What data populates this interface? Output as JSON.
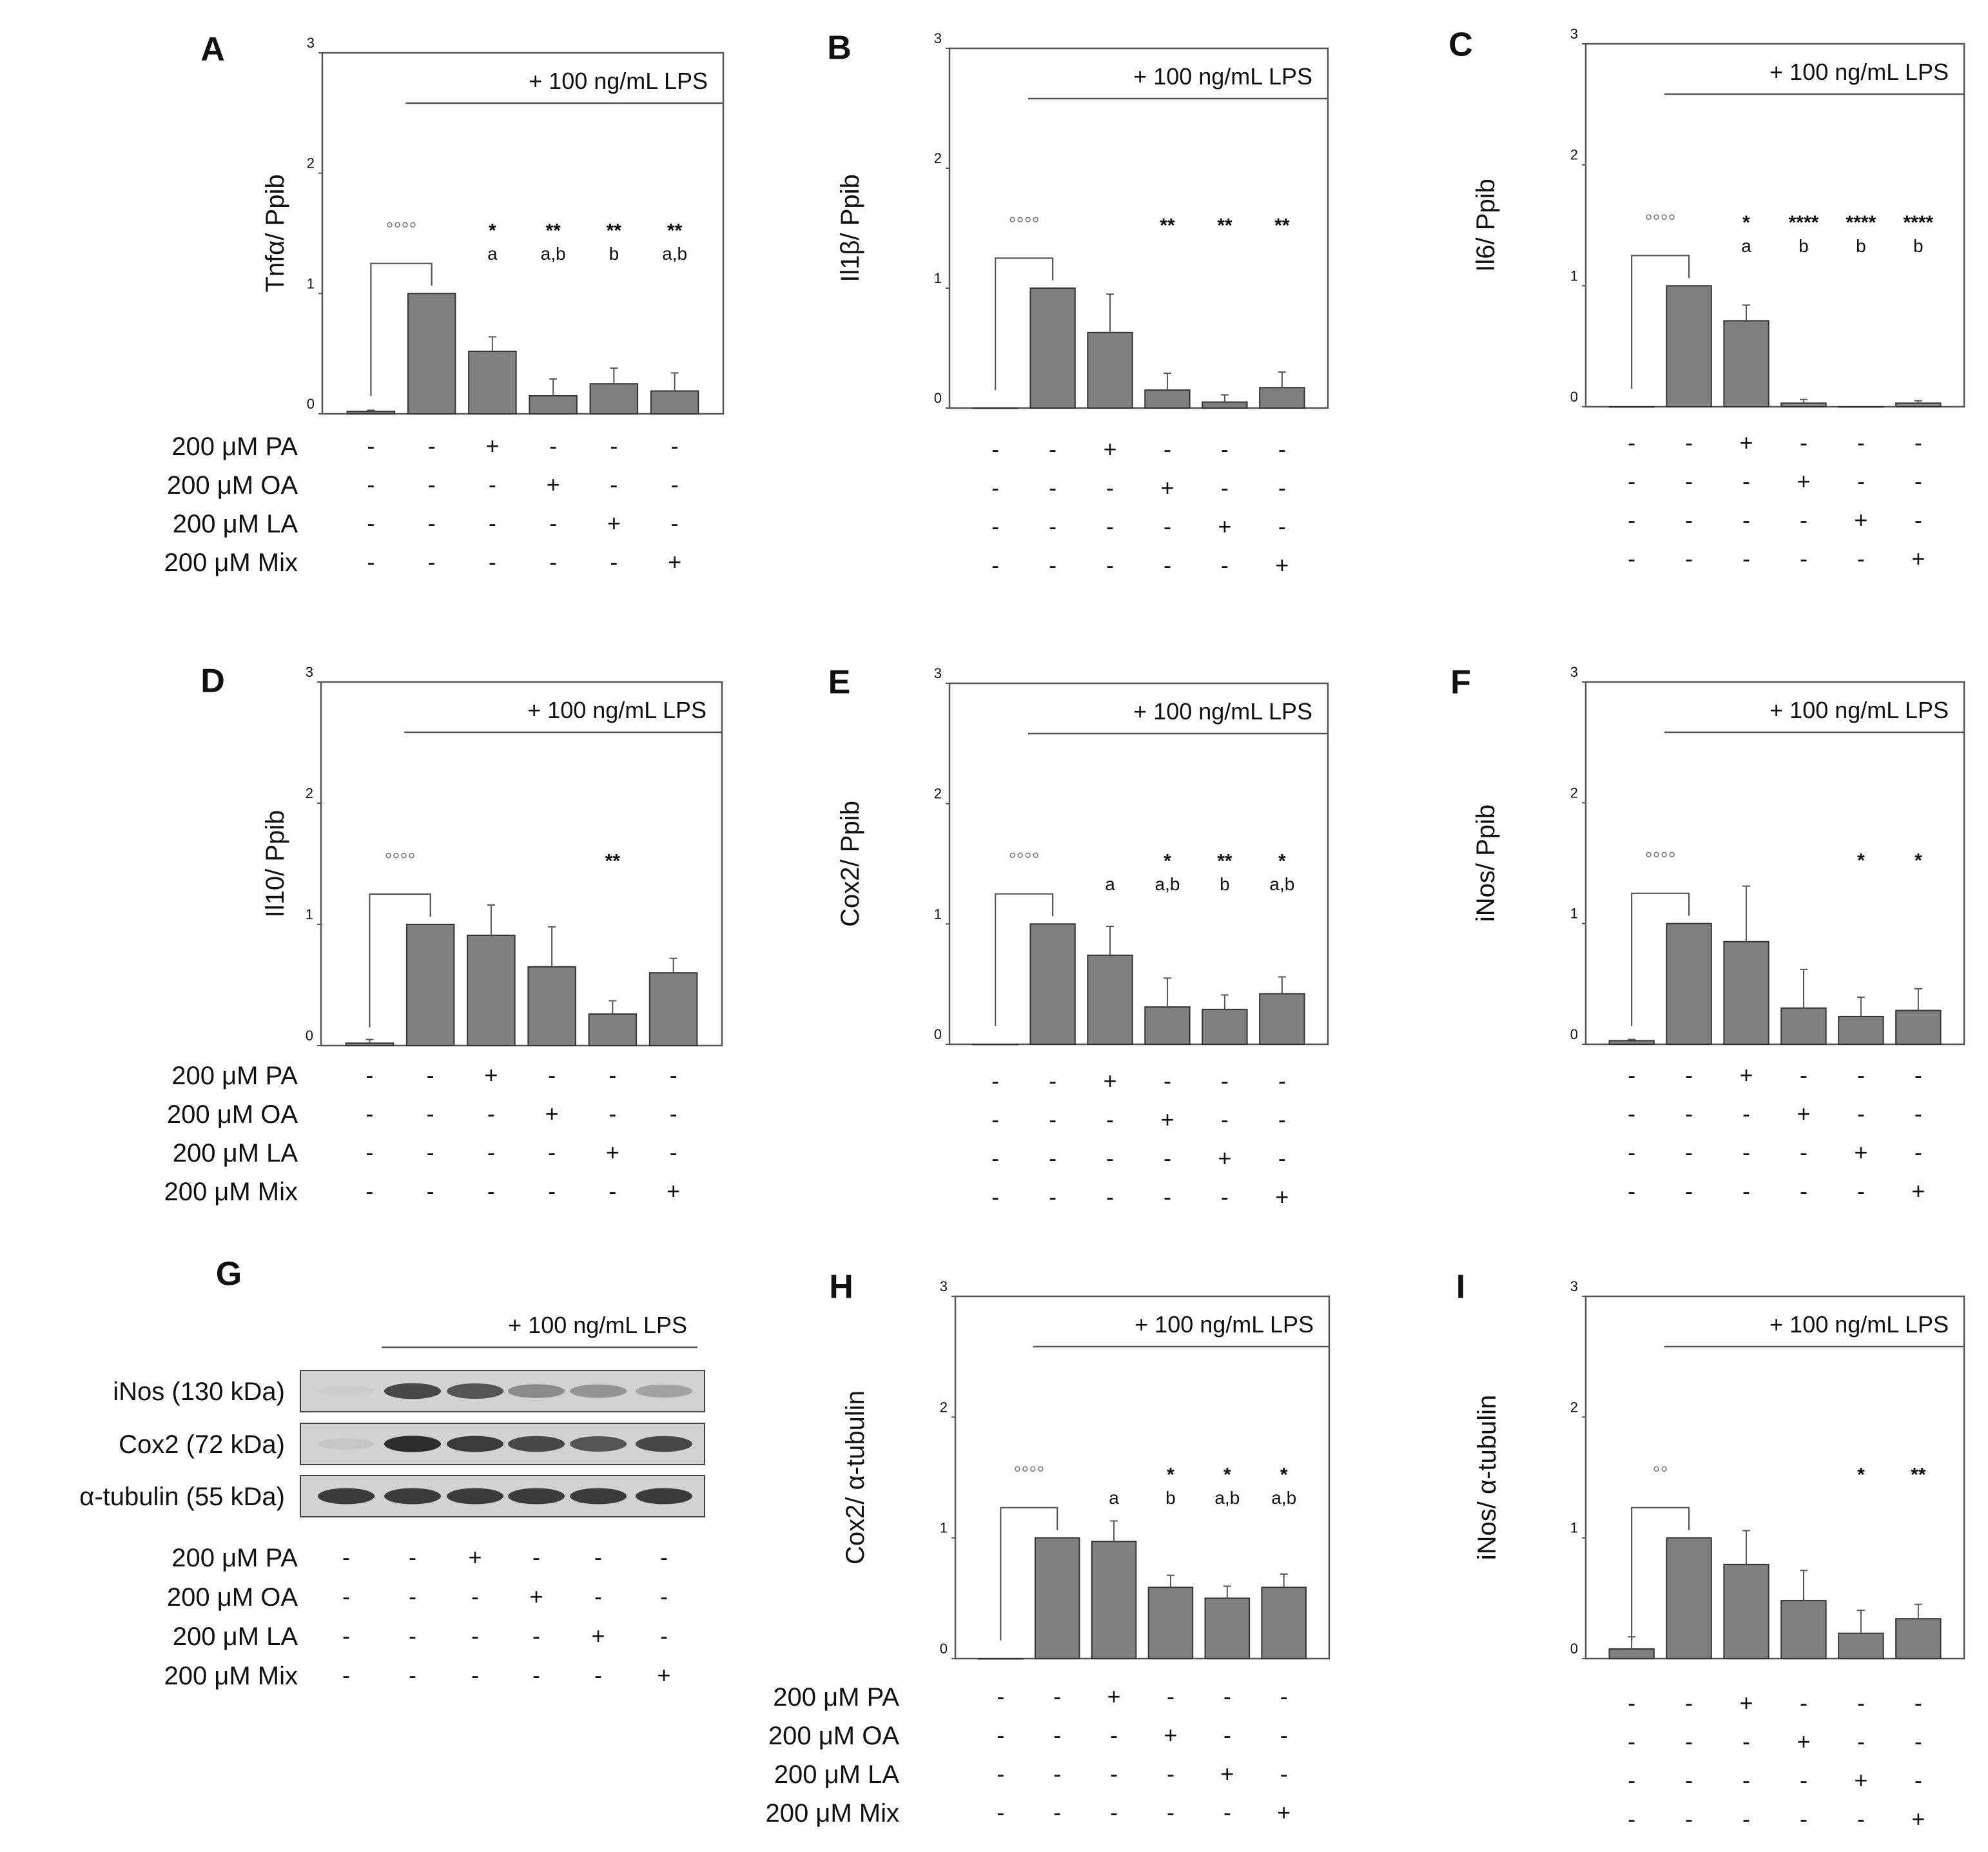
{
  "figure": {
    "lps_label": "+ 100 ng/mL  LPS",
    "treatment_labels": [
      "200 μM PA",
      "200 μM OA",
      "200 μM LA",
      "200 μM Mix"
    ],
    "treatment_matrix": [
      [
        "-",
        "-",
        "+",
        "-",
        "-",
        "-"
      ],
      [
        "-",
        "-",
        "-",
        "+",
        "-",
        "-"
      ],
      [
        "-",
        "-",
        "-",
        "-",
        "+",
        "-"
      ],
      [
        "-",
        "-",
        "-",
        "-",
        "-",
        "+"
      ]
    ],
    "bar_color": "#808080"
  },
  "chart_data": [
    {
      "panel": "A",
      "type": "bar",
      "ylabel": "Tnfα/ Ppib",
      "ylim": [
        0,
        3
      ],
      "yticks": [
        "0",
        "1",
        "2",
        "3"
      ],
      "values": [
        0.02,
        1.0,
        0.52,
        0.15,
        0.25,
        0.19
      ],
      "errors": [
        0.01,
        0.0,
        0.12,
        0.14,
        0.13,
        0.15
      ],
      "control_sig": "°°°°",
      "sig_stars": [
        "",
        "",
        "*",
        "**",
        "**",
        "**"
      ],
      "sig_letters": [
        "",
        "",
        "a",
        "a,b",
        "b",
        "a,b"
      ],
      "show_treatment_labels": true
    },
    {
      "panel": "B",
      "type": "bar",
      "ylabel": "Il1β/ Ppib",
      "ylim": [
        0,
        3
      ],
      "yticks": [
        "0",
        "1",
        "2",
        "3"
      ],
      "values": [
        0.0,
        1.0,
        0.63,
        0.15,
        0.05,
        0.17
      ],
      "errors": [
        0.0,
        0.0,
        0.32,
        0.14,
        0.06,
        0.13
      ],
      "control_sig": "°°°°",
      "sig_stars": [
        "",
        "",
        "",
        "**",
        "**",
        "**"
      ],
      "sig_letters": [
        "",
        "",
        "",
        "",
        "",
        ""
      ],
      "show_treatment_labels": false
    },
    {
      "panel": "C",
      "type": "bar",
      "ylabel": "Il6/ Ppib",
      "ylim": [
        0,
        3
      ],
      "yticks": [
        "0",
        "1",
        "2",
        "3"
      ],
      "values": [
        0.0,
        1.0,
        0.71,
        0.03,
        0.0,
        0.03
      ],
      "errors": [
        0.0,
        0.0,
        0.13,
        0.03,
        0.0,
        0.02
      ],
      "control_sig": "°°°°",
      "sig_stars": [
        "",
        "",
        "*",
        "****",
        "****",
        "****"
      ],
      "sig_letters": [
        "",
        "",
        "a",
        "b",
        "b",
        "b"
      ],
      "show_treatment_labels": false
    },
    {
      "panel": "D",
      "type": "bar",
      "ylabel": "Il10/ Ppib",
      "ylim": [
        0,
        3
      ],
      "yticks": [
        "0",
        "1",
        "2",
        "3"
      ],
      "values": [
        0.02,
        1.0,
        0.91,
        0.65,
        0.26,
        0.6
      ],
      "errors": [
        0.03,
        0.0,
        0.25,
        0.33,
        0.11,
        0.12
      ],
      "control_sig": "°°°°",
      "sig_stars": [
        "",
        "",
        "",
        "",
        "**",
        ""
      ],
      "sig_letters": [
        "",
        "",
        "",
        "",
        "",
        ""
      ],
      "show_treatment_labels": true
    },
    {
      "panel": "E",
      "type": "bar",
      "ylabel": "Cox2/ Ppib",
      "ylim": [
        0,
        3
      ],
      "yticks": [
        "0",
        "1",
        "2",
        "3"
      ],
      "values": [
        0.0,
        1.0,
        0.74,
        0.31,
        0.29,
        0.42
      ],
      "errors": [
        0.0,
        0.0,
        0.24,
        0.24,
        0.12,
        0.14
      ],
      "control_sig": "°°°°",
      "sig_stars": [
        "",
        "",
        "",
        "*",
        "**",
        "*"
      ],
      "sig_letters": [
        "",
        "",
        "a",
        "a,b",
        "b",
        "a,b"
      ],
      "show_treatment_labels": false
    },
    {
      "panel": "F",
      "type": "bar",
      "ylabel": "iNos/ Ppib",
      "ylim": [
        0,
        3
      ],
      "yticks": [
        "0",
        "1",
        "2",
        "3"
      ],
      "values": [
        0.03,
        1.0,
        0.85,
        0.3,
        0.23,
        0.28
      ],
      "errors": [
        0.01,
        0.0,
        0.46,
        0.32,
        0.16,
        0.18
      ],
      "control_sig": "°°°°",
      "sig_stars": [
        "",
        "",
        "",
        "",
        "*",
        "*"
      ],
      "sig_letters": [
        "",
        "",
        "",
        "",
        "",
        ""
      ],
      "show_treatment_labels": false
    },
    {
      "panel": "H",
      "type": "bar",
      "ylabel": "Cox2/ α-tubulin",
      "ylim": [
        0,
        3
      ],
      "yticks": [
        "0",
        "1",
        "2",
        "3"
      ],
      "values": [
        0.0,
        1.0,
        0.97,
        0.59,
        0.5,
        0.59
      ],
      "errors": [
        0.0,
        0.0,
        0.17,
        0.1,
        0.1,
        0.11
      ],
      "control_sig": "°°°°",
      "sig_stars": [
        "",
        "",
        "",
        "*",
        "*",
        "*"
      ],
      "sig_letters": [
        "",
        "",
        "a",
        "b",
        "a,b",
        "a,b"
      ],
      "show_treatment_labels": true
    },
    {
      "panel": "I",
      "type": "bar",
      "ylabel": "iNos/ α-tubulin",
      "ylim": [
        0,
        3
      ],
      "yticks": [
        "0",
        "1",
        "2",
        "3"
      ],
      "values": [
        0.08,
        1.0,
        0.78,
        0.48,
        0.21,
        0.33
      ],
      "errors": [
        0.1,
        0.0,
        0.28,
        0.25,
        0.19,
        0.12
      ],
      "control_sig": "°°",
      "sig_stars": [
        "",
        "",
        "",
        "",
        "*",
        "**"
      ],
      "sig_letters": [
        "",
        "",
        "",
        "",
        "",
        ""
      ],
      "show_treatment_labels": false
    }
  ],
  "western_blot": {
    "panel": "G",
    "rows": [
      {
        "label": "iNos (130 kDa)",
        "intensity": [
          0.03,
          0.85,
          0.8,
          0.55,
          0.5,
          0.42
        ]
      },
      {
        "label": "Cox2 (72 kDa)",
        "intensity": [
          0.12,
          0.95,
          0.9,
          0.85,
          0.8,
          0.85
        ]
      },
      {
        "label": "α-tubulin (55 kDa)",
        "intensity": [
          0.9,
          0.9,
          0.9,
          0.9,
          0.9,
          0.9
        ]
      }
    ]
  }
}
